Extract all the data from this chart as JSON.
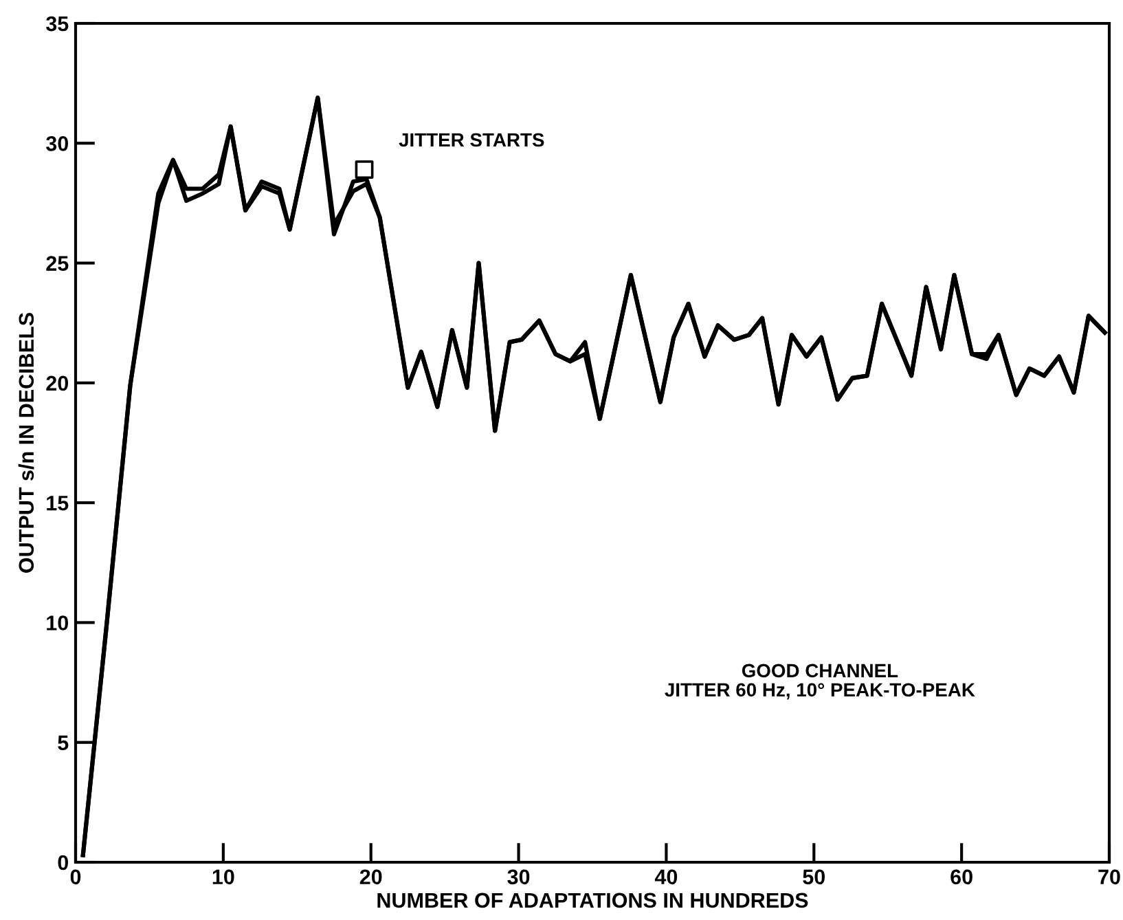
{
  "chart_data": {
    "type": "line",
    "xlabel": "NUMBER OF ADAPTATIONS IN HUNDREDS",
    "ylabel": "OUTPUT s/n IN DECIBELS",
    "xlim": [
      0,
      70
    ],
    "ylim": [
      0,
      35
    ],
    "xticks": [
      0,
      10,
      20,
      30,
      40,
      50,
      60,
      70
    ],
    "yticks": [
      0,
      5,
      10,
      15,
      20,
      25,
      30,
      35
    ],
    "grid": false,
    "legend": false,
    "marker": "none",
    "line_style": "solid",
    "series": [
      {
        "color": "#000000",
        "x": [
          0.5,
          2.1,
          3.7,
          5.6,
          6.6,
          7.5,
          8.6,
          9.7,
          10.5,
          11.5,
          12.6,
          13.8,
          14.5,
          16.4,
          17.5,
          18.8,
          19.7,
          20.6,
          22.5,
          23.4,
          24.5,
          25.5,
          26.5,
          27.3,
          28.4,
          29.4,
          30.2,
          31.4,
          32.5,
          33.5,
          34.5,
          35.5,
          37.6,
          39.6,
          40.5,
          41.5,
          42.6,
          43.5,
          44.6,
          45.6,
          46.5,
          47.6,
          48.5,
          49.5,
          50.5,
          51.6,
          52.6,
          53.6,
          54.6,
          56.6,
          57.6,
          58.6,
          59.5,
          60.7,
          61.7,
          62.5,
          63.7,
          64.6,
          65.6,
          66.6,
          67.6,
          68.6,
          69.7
        ],
        "values": [
          0.3,
          9.9,
          19.9,
          27.9,
          29.3,
          28.1,
          28.1,
          28.7,
          30.7,
          27.2,
          28.4,
          28.1,
          26.4,
          31.9,
          26.2,
          28.4,
          28.5,
          26.9,
          19.8,
          21.3,
          19.0,
          22.2,
          19.8,
          25.0,
          18.0,
          21.7,
          21.8,
          22.6,
          21.2,
          20.9,
          21.7,
          18.5,
          24.5,
          19.2,
          21.9,
          23.3,
          21.1,
          22.4,
          21.8,
          22.0,
          22.7,
          19.1,
          22.0,
          21.1,
          21.9,
          19.3,
          20.2,
          20.3,
          23.3,
          20.3,
          24.0,
          21.4,
          24.5,
          21.2,
          21.2,
          22.0,
          19.5,
          20.6,
          20.3,
          21.1,
          19.6,
          22.8,
          22.1
        ]
      },
      {
        "color": "#000000",
        "x": [
          0.5,
          2.1,
          3.7,
          5.6,
          6.6,
          7.5,
          8.6,
          9.7,
          10.5,
          11.5,
          12.6,
          13.8,
          14.5,
          16.4,
          17.5,
          18.8,
          19.7,
          20.6,
          22.5,
          23.4,
          24.5,
          25.5,
          26.5,
          27.3,
          28.4,
          29.4,
          30.2,
          31.4,
          32.5,
          33.5,
          34.5,
          35.5,
          37.6,
          39.6,
          40.5,
          41.5,
          42.6,
          43.5,
          44.6,
          45.6,
          46.5,
          47.6,
          48.5,
          49.5,
          50.5,
          51.6,
          52.6,
          53.6,
          54.6,
          56.6,
          57.6,
          58.6,
          59.5,
          60.7,
          61.7,
          62.5,
          63.7,
          64.6,
          65.6,
          66.6,
          67.6,
          68.6,
          69.7
        ],
        "values": [
          0.3,
          9.9,
          19.9,
          27.5,
          29.3,
          27.6,
          27.9,
          28.3,
          30.7,
          27.2,
          28.2,
          27.9,
          26.4,
          31.9,
          26.6,
          28.0,
          28.3,
          26.9,
          19.8,
          21.3,
          19.0,
          22.2,
          19.8,
          25.0,
          18.0,
          21.7,
          21.8,
          22.6,
          21.2,
          20.9,
          21.2,
          18.5,
          24.5,
          19.2,
          21.9,
          23.3,
          21.1,
          22.4,
          21.8,
          22.0,
          22.7,
          19.1,
          22.0,
          21.1,
          21.9,
          19.3,
          20.2,
          20.3,
          23.3,
          20.3,
          24.0,
          21.4,
          24.5,
          21.2,
          21.0,
          22.0,
          19.5,
          20.6,
          20.3,
          21.1,
          19.6,
          22.8,
          22.1
        ]
      },
      {
        "type": "scatter",
        "marker": "square",
        "color": "#000000",
        "x": [
          19.55
        ],
        "values": [
          28.9
        ]
      }
    ],
    "annotations": [
      {
        "text": "JITTER STARTS",
        "x": 19.55,
        "y": 28.9
      },
      "GOOD CHANNEL\nJITTER 60 Hz, 10° PEAK-TO-PEAK"
    ]
  }
}
